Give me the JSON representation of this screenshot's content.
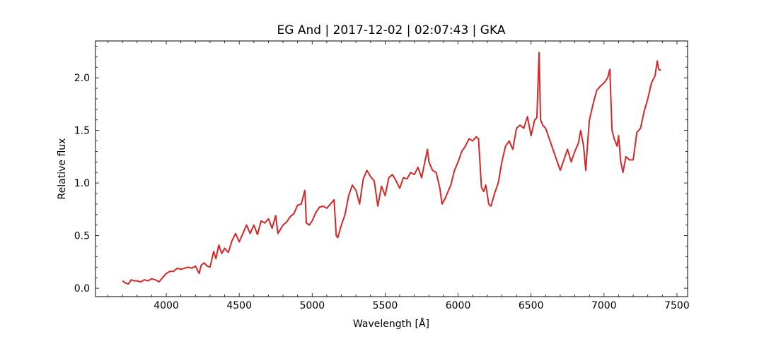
{
  "chart_data": {
    "type": "line",
    "title": "EG And | 2017-12-02 | 02:07:43 | GKA",
    "xlabel": "Wavelength [Å]",
    "ylabel": "Relative flux",
    "xlim": [
      3515,
      7573
    ],
    "ylim": [
      -0.08,
      2.35
    ],
    "xticks": [
      4000,
      4500,
      5000,
      5500,
      6000,
      6500,
      7000,
      7500
    ],
    "yticks": [
      {
        "value": 0,
        "label": "0.0"
      },
      0.5,
      {
        "value": 1,
        "label": "1.0"
      },
      1.5,
      {
        "value": 2,
        "label": "2.0"
      }
    ],
    "xminorticks": [
      3600,
      3700,
      3800,
      3900,
      4100,
      4200,
      4300,
      4400,
      4600,
      4700,
      4800,
      4900,
      5100,
      5200,
      5300,
      5400,
      5600,
      5700,
      5800,
      5900,
      6100,
      6200,
      6300,
      6400,
      6600,
      6700,
      6800,
      6900,
      7100,
      7200,
      7300,
      7400
    ],
    "yminorticks": [
      0.1,
      0.2,
      0.3,
      0.4,
      0.6,
      0.7,
      0.8,
      0.9,
      1.1,
      1.2,
      1.3,
      1.4,
      1.6,
      1.7,
      1.8,
      1.9,
      2.1,
      2.2,
      2.3
    ],
    "ticks_direction": "in",
    "series": [
      {
        "color": "#d62728",
        "x": [
          3700,
          3720,
          3740,
          3760,
          3780,
          3800,
          3825,
          3850,
          3875,
          3900,
          3925,
          3950,
          3975,
          4000,
          4025,
          4050,
          4075,
          4100,
          4125,
          4150,
          4175,
          4200,
          4225,
          4240,
          4260,
          4280,
          4300,
          4325,
          4340,
          4360,
          4380,
          4400,
          4425,
          4450,
          4475,
          4500,
          4525,
          4550,
          4575,
          4600,
          4625,
          4650,
          4675,
          4700,
          4725,
          4750,
          4765,
          4800,
          4825,
          4850,
          4875,
          4900,
          4925,
          4950,
          4960,
          4980,
          5000,
          5025,
          5050,
          5075,
          5100,
          5125,
          5150,
          5165,
          5175,
          5200,
          5225,
          5250,
          5275,
          5300,
          5325,
          5350,
          5375,
          5400,
          5425,
          5450,
          5475,
          5500,
          5525,
          5550,
          5575,
          5600,
          5625,
          5650,
          5675,
          5700,
          5725,
          5750,
          5775,
          5790,
          5800,
          5825,
          5850,
          5875,
          5890,
          5910,
          5925,
          5950,
          5975,
          6000,
          6025,
          6050,
          6075,
          6100,
          6125,
          6140,
          6160,
          6175,
          6190,
          6210,
          6225,
          6250,
          6275,
          6300,
          6325,
          6350,
          6375,
          6400,
          6425,
          6450,
          6475,
          6500,
          6525,
          6540,
          6555,
          6565,
          6580,
          6600,
          6625,
          6650,
          6675,
          6700,
          6725,
          6750,
          6775,
          6800,
          6825,
          6840,
          6860,
          6875,
          6890,
          6900,
          6925,
          6950,
          6975,
          7000,
          7025,
          7040,
          7055,
          7070,
          7090,
          7100,
          7115,
          7130,
          7150,
          7175,
          7200,
          7225,
          7250,
          7275,
          7300,
          7325,
          7350,
          7365,
          7375,
          7390
        ],
        "values": [
          0.07,
          0.05,
          0.04,
          0.08,
          0.07,
          0.07,
          0.06,
          0.08,
          0.07,
          0.09,
          0.08,
          0.06,
          0.1,
          0.14,
          0.16,
          0.16,
          0.19,
          0.18,
          0.19,
          0.2,
          0.19,
          0.21,
          0.14,
          0.22,
          0.24,
          0.21,
          0.2,
          0.35,
          0.28,
          0.41,
          0.33,
          0.38,
          0.34,
          0.45,
          0.52,
          0.44,
          0.52,
          0.6,
          0.52,
          0.6,
          0.51,
          0.64,
          0.62,
          0.66,
          0.57,
          0.69,
          0.52,
          0.6,
          0.63,
          0.68,
          0.71,
          0.79,
          0.8,
          0.93,
          0.62,
          0.6,
          0.64,
          0.72,
          0.77,
          0.78,
          0.76,
          0.8,
          0.84,
          0.5,
          0.48,
          0.6,
          0.7,
          0.88,
          0.98,
          0.93,
          0.8,
          1.04,
          1.12,
          1.06,
          1.02,
          0.78,
          0.97,
          0.88,
          1.05,
          1.08,
          1.02,
          0.95,
          1.05,
          1.04,
          1.1,
          1.08,
          1.15,
          1.05,
          1.22,
          1.32,
          1.2,
          1.12,
          1.1,
          0.95,
          0.8,
          0.85,
          0.9,
          0.98,
          1.12,
          1.2,
          1.3,
          1.35,
          1.42,
          1.4,
          1.44,
          1.42,
          0.96,
          0.92,
          0.98,
          0.8,
          0.78,
          0.9,
          1.0,
          1.2,
          1.35,
          1.4,
          1.32,
          1.52,
          1.55,
          1.52,
          1.63,
          1.45,
          1.6,
          1.62,
          2.24,
          1.6,
          1.55,
          1.52,
          1.42,
          1.32,
          1.22,
          1.12,
          1.22,
          1.32,
          1.2,
          1.3,
          1.38,
          1.5,
          1.35,
          1.12,
          1.42,
          1.6,
          1.75,
          1.88,
          1.92,
          1.95,
          2.0,
          2.08,
          1.5,
          1.42,
          1.35,
          1.45,
          1.2,
          1.1,
          1.25,
          1.22,
          1.22,
          1.48,
          1.52,
          1.68,
          1.8,
          1.95,
          2.02,
          2.16,
          2.08,
          2.07
        ]
      }
    ]
  }
}
